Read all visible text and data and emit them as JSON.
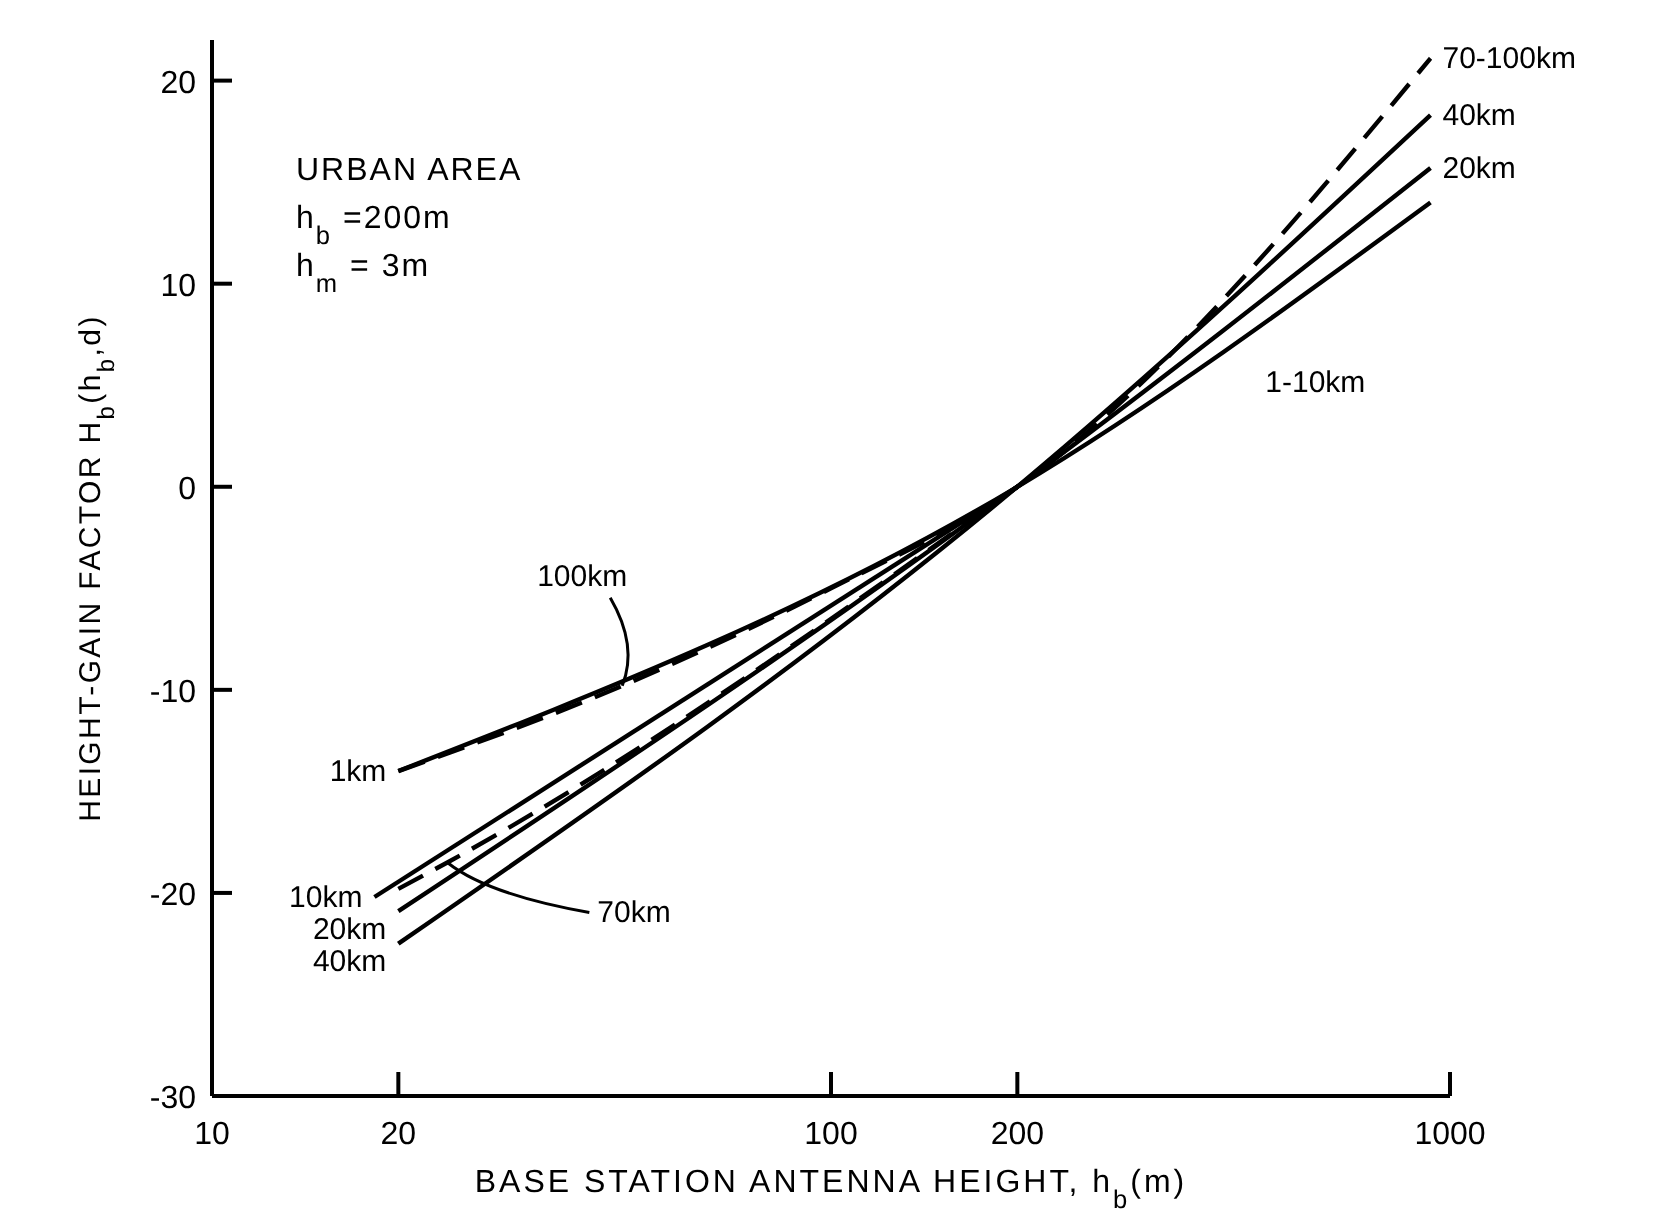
{
  "chart_data": {
    "type": "line",
    "xlabel": "BASE STATION ANTENNA HEIGHT, h$_{b}$(m)",
    "ylabel": "HEIGHT-GAIN FACTOR H$_{b}$(h$_{b}$,d)",
    "log": "x",
    "xlim": [
      10,
      1000
    ],
    "xticks": [
      10,
      20,
      100,
      200,
      1000
    ],
    "ylim": [
      -30,
      22
    ],
    "yticks": [
      -30,
      -20,
      -10,
      0,
      10,
      20
    ],
    "grid": false,
    "marker": "none",
    "series": [
      {
        "color": "#000000",
        "line_style": "solid",
        "x": [
          20,
          200,
          930
        ],
        "values": [
          -14,
          0,
          14
        ]
      },
      {
        "color": "#000000",
        "line_style": "dashed",
        "x": [
          20,
          46,
          100,
          200,
          930
        ],
        "values": [
          -14,
          -9.8,
          -5,
          0,
          21.1
        ]
      },
      {
        "color": "#000000",
        "line_style": "solid",
        "x": [
          18.3,
          200
        ],
        "values": [
          -20.2,
          0
        ]
      },
      {
        "color": "#000000",
        "line_style": "dashed",
        "x": [
          20,
          24,
          200
        ],
        "values": [
          -19.8,
          -18.5,
          0
        ]
      },
      {
        "color": "#000000",
        "line_style": "solid",
        "x": [
          20,
          200,
          930
        ],
        "values": [
          -20.9,
          0,
          15.7
        ]
      },
      {
        "color": "#000000",
        "line_style": "solid",
        "x": [
          20,
          200,
          930
        ],
        "values": [
          -22.5,
          0,
          18.3
        ]
      }
    ],
    "annotations": [
      "URBAN AREA",
      "h$_{b}$ =200m",
      "h$_{m}$ =   3m",
      {
        "text": "1km",
        "x": 20,
        "y": -14
      },
      {
        "text": "100km",
        "x": 46,
        "y": -9.8
      },
      {
        "text": "10km",
        "x": 18.3,
        "y": -20.2
      },
      {
        "text": "70km",
        "x": 24,
        "y": -18.5
      },
      {
        "text": "20km",
        "x": 20,
        "y": -20.9
      },
      {
        "text": "40km",
        "x": 20,
        "y": -22.5
      },
      {
        "text": "70-100km",
        "x": 930,
        "y": 21.1
      },
      {
        "text": "40km",
        "x": 930,
        "y": 18.3
      },
      {
        "text": "20km",
        "x": 930,
        "y": 15.7
      },
      {
        "text": "1-10km",
        "x": 450,
        "y": 7.4
      }
    ]
  }
}
